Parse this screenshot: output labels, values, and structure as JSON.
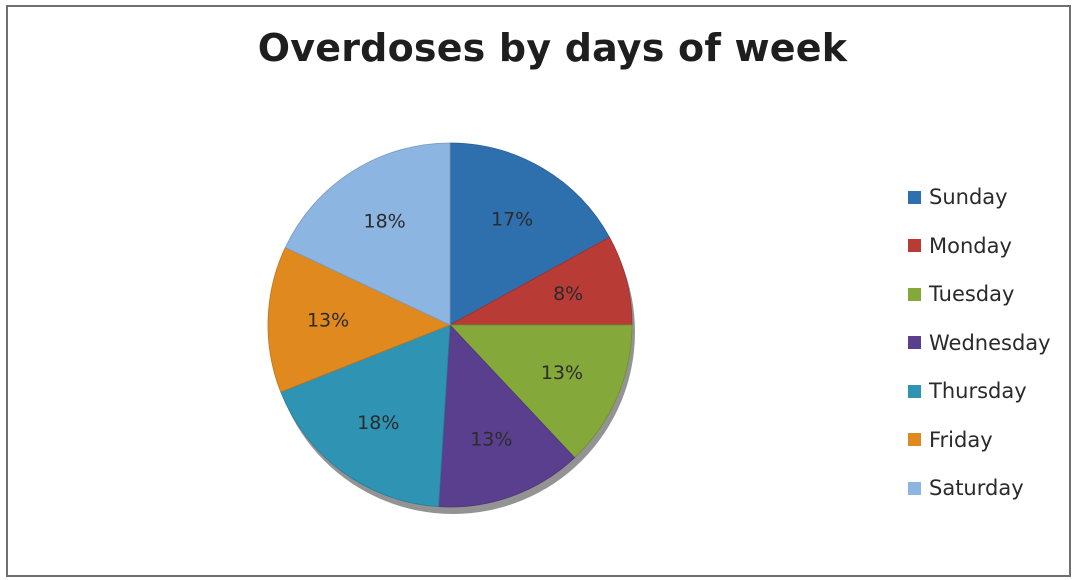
{
  "chart_data": {
    "type": "pie",
    "title": "Overdoses by days of week",
    "categories": [
      "Sunday",
      "Monday",
      "Tuesday",
      "Wednesday",
      "Thursday",
      "Friday",
      "Saturday"
    ],
    "values": [
      17,
      8,
      13,
      13,
      18,
      13,
      18
    ],
    "value_labels": [
      "17%",
      "8%",
      "13%",
      "13%",
      "18%",
      "13%",
      "18%"
    ],
    "colors": [
      "#2e6fad",
      "#b83b36",
      "#84a83a",
      "#5b3f8f",
      "#2f93b3",
      "#e0891f",
      "#8db5e2"
    ],
    "legend": {
      "position": "right",
      "entries": [
        "Sunday",
        "Monday",
        "Tuesday",
        "Wednesday",
        "Thursday",
        "Friday",
        "Saturday"
      ]
    }
  }
}
